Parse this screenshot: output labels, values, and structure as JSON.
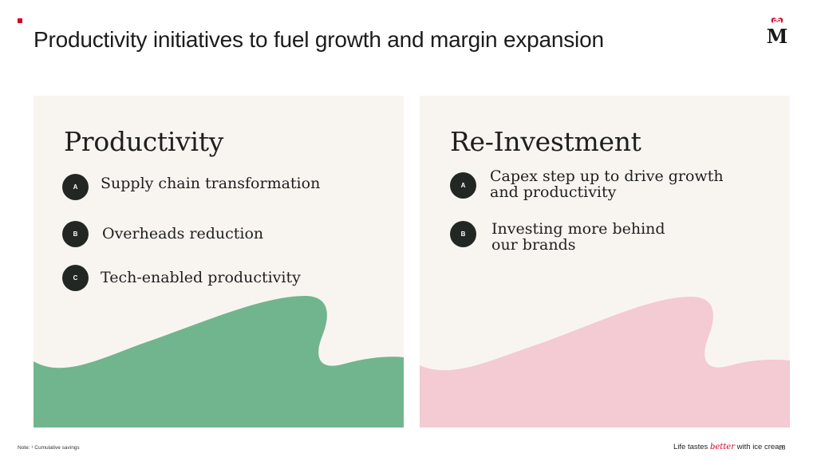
{
  "slide": {
    "title": "Productivity initiatives to fuel growth and margin expansion",
    "logo_icon": "magnum-m-logo",
    "accent_color": "#d4002a"
  },
  "productivity": {
    "heading": "Productivity",
    "wave_color": "#71b58e",
    "items": [
      {
        "badge": "A",
        "text": "Supply chain transformation"
      },
      {
        "badge": "B",
        "text": "Overheads reduction"
      },
      {
        "badge": "C",
        "text": "Tech-enabled productivity"
      }
    ]
  },
  "reinvestment": {
    "heading": "Re-Investment",
    "wave_color": "#f4cad3",
    "items": [
      {
        "badge": "A",
        "line1": "Capex step up to drive growth",
        "line2": "and productivity"
      },
      {
        "badge": "B",
        "line1": "Investing more behind",
        "line2": "our brands"
      }
    ]
  },
  "footer": {
    "note": "Note: ¹ Cumulative savings",
    "tagline_pre": "Life tastes ",
    "tagline_emph": "better",
    "tagline_post": " with ice cream",
    "page_number": "28"
  }
}
